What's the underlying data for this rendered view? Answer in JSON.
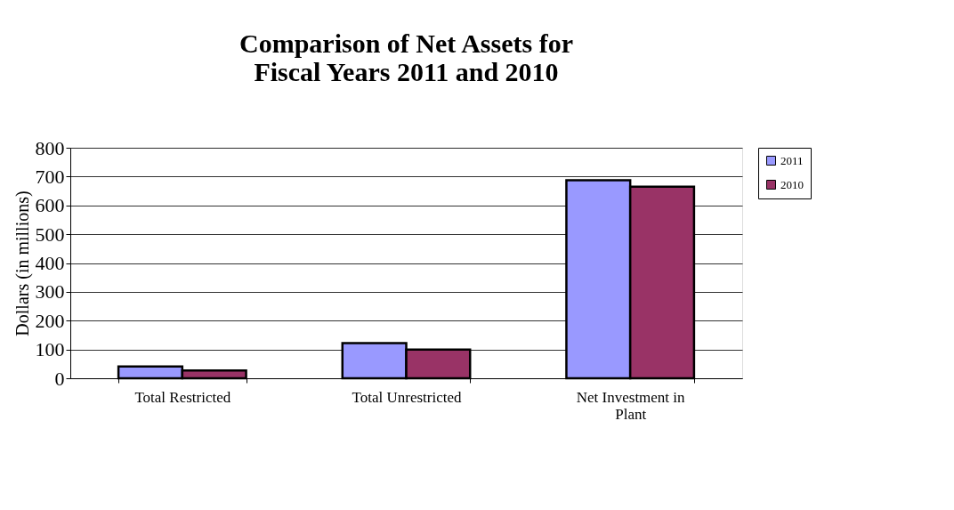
{
  "chart_data": {
    "type": "bar",
    "title": [
      "Comparison of Net Assets for",
      "Fiscal Years 2011 and 2010"
    ],
    "ylabel": "Dollars (in millions)",
    "categories": [
      "Total Restricted",
      "Total Unrestricted",
      "Net Investment in Plant"
    ],
    "series": [
      {
        "name": "2011",
        "color": "#9999ff",
        "values": [
          41,
          122,
          687
        ]
      },
      {
        "name": "2010",
        "color": "#993366",
        "values": [
          27,
          100,
          665
        ]
      }
    ],
    "ylim": [
      0,
      800
    ],
    "yticks": [
      0,
      100,
      200,
      300,
      400,
      500,
      600,
      700,
      800
    ],
    "grid": "y",
    "legend": "right"
  }
}
